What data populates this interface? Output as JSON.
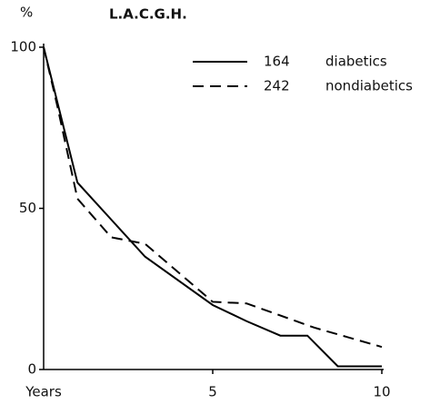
{
  "chart_data": {
    "type": "line",
    "title": "L.A.C.G.H.",
    "ylabel": "%",
    "xlabel": "Years",
    "xlim": [
      0,
      10
    ],
    "ylim": [
      0,
      100
    ],
    "xticks": [
      5,
      10
    ],
    "yticks": [
      0,
      50,
      100
    ],
    "series": [
      {
        "name": "diabetics",
        "n": 164,
        "color": "#000000",
        "dashed": false,
        "x": [
          0,
          1,
          3,
          5,
          6,
          7,
          7.8,
          8.7,
          10
        ],
        "values": [
          100,
          58,
          35,
          20,
          15,
          10.5,
          10.5,
          1,
          1
        ]
      },
      {
        "name": "nondiabetics",
        "n": 242,
        "color": "#000000",
        "dashed": true,
        "x": [
          0,
          0.4,
          1,
          2,
          3,
          5,
          6,
          8,
          10
        ],
        "values": [
          100,
          82,
          53,
          41,
          39,
          21,
          20.5,
          13,
          7
        ]
      }
    ]
  }
}
